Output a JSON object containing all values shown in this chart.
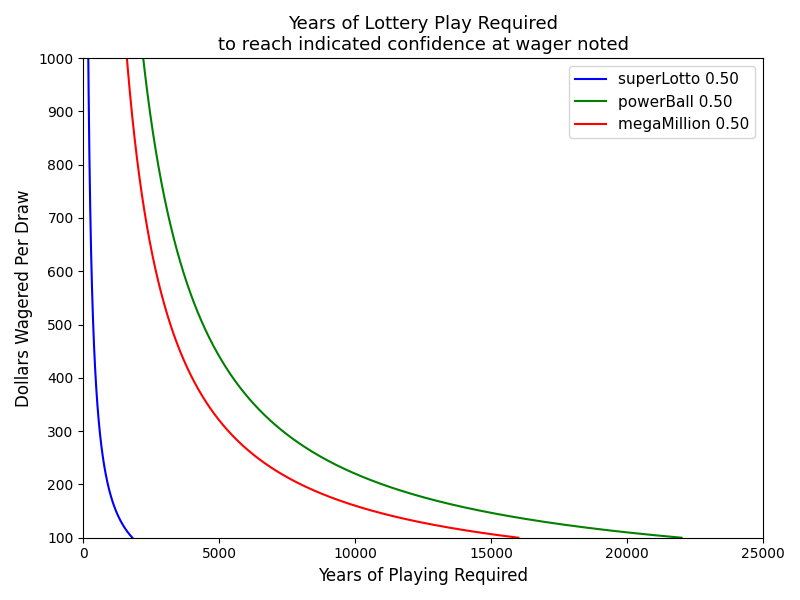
{
  "title_line1": "Years of Lottery Play Required",
  "title_line2": "to reach indicated confidence at wager noted",
  "xlabel": "Years of Playing Required",
  "ylabel": "Dollars Wagered Per Draw",
  "xlim": [
    0,
    25000
  ],
  "ylim": [
    100,
    1000
  ],
  "xticks": [
    0,
    5000,
    10000,
    15000,
    20000,
    25000
  ],
  "yticks": [
    100,
    200,
    300,
    400,
    500,
    600,
    700,
    800,
    900,
    1000
  ],
  "series": [
    {
      "name": "superLotto 0.50",
      "color": "blue",
      "K": 180000
    },
    {
      "name": "powerBall 0.50",
      "color": "green",
      "K": 2200000
    },
    {
      "name": "megaMillion 0.50",
      "color": "red",
      "K": 1600000
    }
  ],
  "wager_min": 100,
  "wager_max": 1000,
  "n_points": 1000,
  "legend_loc": "upper right",
  "legend_fontsize": 11,
  "title_fontsize": 13,
  "axis_label_fontsize": 12
}
